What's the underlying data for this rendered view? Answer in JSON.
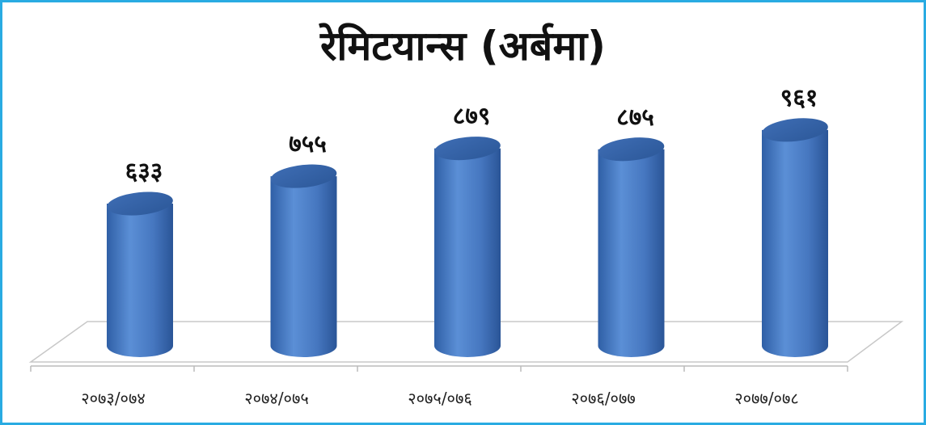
{
  "chart_data": {
    "type": "bar",
    "style": "3d-cylinder",
    "title": "रेमिटयान्स (अर्बमा)",
    "categories": [
      "२०७३/०७४",
      "२०७४/०७५",
      "२०७५/०७६",
      "२०७६/०७७",
      "२०७७/०७८"
    ],
    "values": [
      633,
      755,
      879,
      875,
      961
    ],
    "data_labels": [
      "६३३",
      "७५५",
      "८७९",
      "८७५",
      "९६१"
    ],
    "xlabel": "",
    "ylabel": "",
    "ylim": [
      0,
      1000
    ],
    "grid": false,
    "legend": "none",
    "colors": {
      "bar": "#4a7fc8",
      "border": "#29abe2"
    }
  }
}
